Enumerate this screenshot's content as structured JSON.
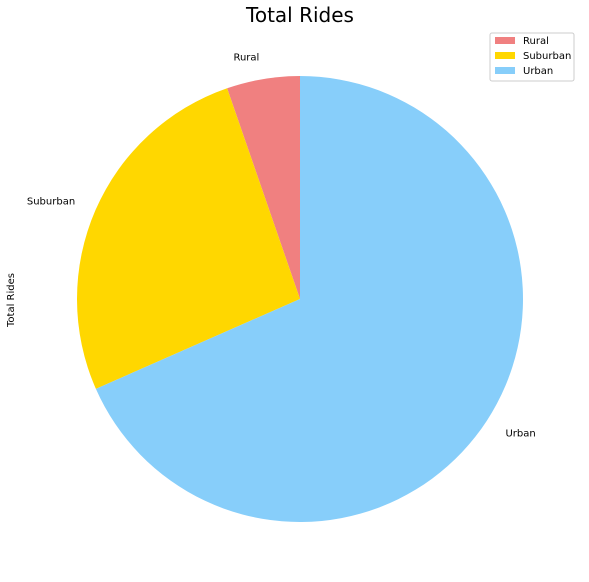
{
  "chart_data": {
    "type": "pie",
    "title": "Total Rides",
    "ylabel": "Total Rides",
    "categories": [
      "Rural",
      "Suburban",
      "Urban"
    ],
    "values": [
      5.3,
      26.3,
      68.4
    ],
    "colors": [
      "#f08080",
      "#ffd700",
      "#87cefa"
    ],
    "start_angle_deg": 90,
    "direction": "counterclockwise",
    "legend": {
      "placement": "top-right",
      "entries": [
        "Rural",
        "Suburban",
        "Urban"
      ]
    }
  }
}
